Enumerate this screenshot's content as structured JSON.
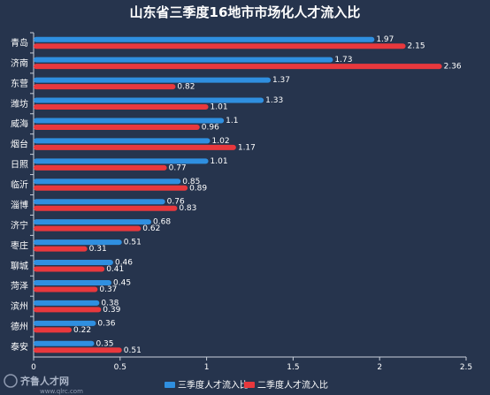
{
  "chart_data": {
    "type": "bar",
    "orientation": "horizontal",
    "title": "山东省三季度16地市市场化人才流入比",
    "categories": [
      "青岛",
      "济南",
      "东营",
      "潍坊",
      "威海",
      "烟台",
      "日照",
      "临沂",
      "淄博",
      "济宁",
      "枣庄",
      "聊城",
      "菏泽",
      "滨州",
      "德州",
      "泰安"
    ],
    "series": [
      {
        "name": "三季度人才流入比",
        "color": "#2f8fe0",
        "values": [
          1.97,
          1.73,
          1.37,
          1.33,
          1.1,
          1.02,
          1.01,
          0.85,
          0.76,
          0.68,
          0.51,
          0.46,
          0.45,
          0.38,
          0.36,
          0.35
        ],
        "labels": [
          "1.97",
          "1.73",
          "1.37",
          "1.33",
          "1.1",
          "1.02",
          "1.01",
          "0.85",
          "0.76",
          "0.68",
          "0.51",
          "0.46",
          "0.45",
          "0.38",
          "0.36",
          "0.35"
        ]
      },
      {
        "name": "二季度人才流入比",
        "color": "#e8383d",
        "values": [
          2.15,
          2.36,
          0.82,
          1.01,
          0.96,
          1.17,
          0.77,
          0.89,
          0.83,
          0.62,
          0.31,
          0.41,
          0.37,
          0.39,
          0.22,
          0.51
        ],
        "labels": [
          "2.15",
          "2.36",
          "0.82",
          "1.01",
          "0.96",
          "1.17",
          "0.77",
          "0.89",
          "0.83",
          "0.62",
          "0.31",
          "0.41",
          "0.37",
          "0.39",
          "0.22",
          "0.51"
        ]
      }
    ],
    "xlim": [
      0,
      2.5
    ],
    "xticks": [
      "0",
      "0.5",
      "1",
      "1.5",
      "2",
      "2.5"
    ],
    "grid": false,
    "legend_position": "bottom"
  },
  "watermark": {
    "brand": "齐鲁人才网",
    "url": "www.qlrc.com"
  }
}
